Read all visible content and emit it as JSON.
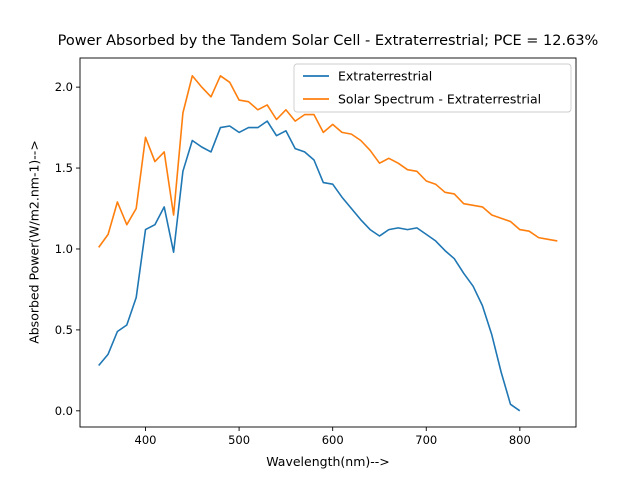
{
  "chart_data": {
    "type": "line",
    "title": "Power Absorbed by the Tandem Solar Cell - Extraterrestrial; PCE = 12.63%",
    "xlabel": "Wavelength(nm)-->",
    "ylabel": "Absorbed Power(W/m2.nm-1)-->",
    "xlim": [
      330,
      860
    ],
    "ylim": [
      -0.1,
      2.18
    ],
    "xticks": [
      400,
      500,
      600,
      700,
      800
    ],
    "yticks": [
      0.0,
      0.5,
      1.0,
      1.5,
      2.0
    ],
    "xtick_labels": [
      "400",
      "500",
      "600",
      "700",
      "800"
    ],
    "ytick_labels": [
      "0.0",
      "0.5",
      "1.0",
      "1.5",
      "2.0"
    ],
    "grid": false,
    "legend_position": "top-right",
    "series": [
      {
        "name": "Extraterrestrial",
        "color": "#1f77b4",
        "x": [
          350,
          360,
          370,
          380,
          390,
          400,
          410,
          420,
          430,
          440,
          450,
          460,
          470,
          480,
          490,
          500,
          510,
          520,
          530,
          540,
          550,
          560,
          570,
          580,
          590,
          600,
          610,
          620,
          630,
          640,
          650,
          660,
          670,
          680,
          690,
          700,
          710,
          720,
          730,
          740,
          750,
          760,
          770,
          780,
          790,
          800
        ],
        "y": [
          0.28,
          0.35,
          0.49,
          0.53,
          0.7,
          1.12,
          1.15,
          1.26,
          0.98,
          1.48,
          1.67,
          1.63,
          1.6,
          1.75,
          1.76,
          1.72,
          1.75,
          1.75,
          1.79,
          1.7,
          1.73,
          1.62,
          1.6,
          1.55,
          1.41,
          1.4,
          1.32,
          1.25,
          1.18,
          1.12,
          1.08,
          1.12,
          1.13,
          1.12,
          1.13,
          1.09,
          1.05,
          0.99,
          0.94,
          0.85,
          0.77,
          0.65,
          0.47,
          0.24,
          0.04,
          0.0
        ]
      },
      {
        "name": "Solar Spectrum - Extraterrestrial",
        "color": "#ff7f0e",
        "x": [
          350,
          360,
          370,
          380,
          390,
          400,
          410,
          420,
          430,
          440,
          450,
          460,
          470,
          480,
          490,
          500,
          510,
          520,
          530,
          540,
          550,
          560,
          570,
          580,
          590,
          600,
          610,
          620,
          630,
          640,
          650,
          660,
          670,
          680,
          690,
          700,
          710,
          720,
          730,
          740,
          750,
          760,
          770,
          780,
          790,
          800,
          810,
          820,
          830,
          840
        ],
        "y": [
          1.01,
          1.09,
          1.29,
          1.15,
          1.25,
          1.69,
          1.54,
          1.6,
          1.21,
          1.84,
          2.07,
          2.0,
          1.94,
          2.07,
          2.03,
          1.92,
          1.91,
          1.86,
          1.89,
          1.8,
          1.86,
          1.79,
          1.83,
          1.83,
          1.72,
          1.77,
          1.72,
          1.71,
          1.67,
          1.61,
          1.53,
          1.56,
          1.53,
          1.49,
          1.48,
          1.42,
          1.4,
          1.35,
          1.34,
          1.28,
          1.27,
          1.26,
          1.21,
          1.19,
          1.17,
          1.12,
          1.11,
          1.07,
          1.06,
          1.05
        ]
      }
    ]
  }
}
